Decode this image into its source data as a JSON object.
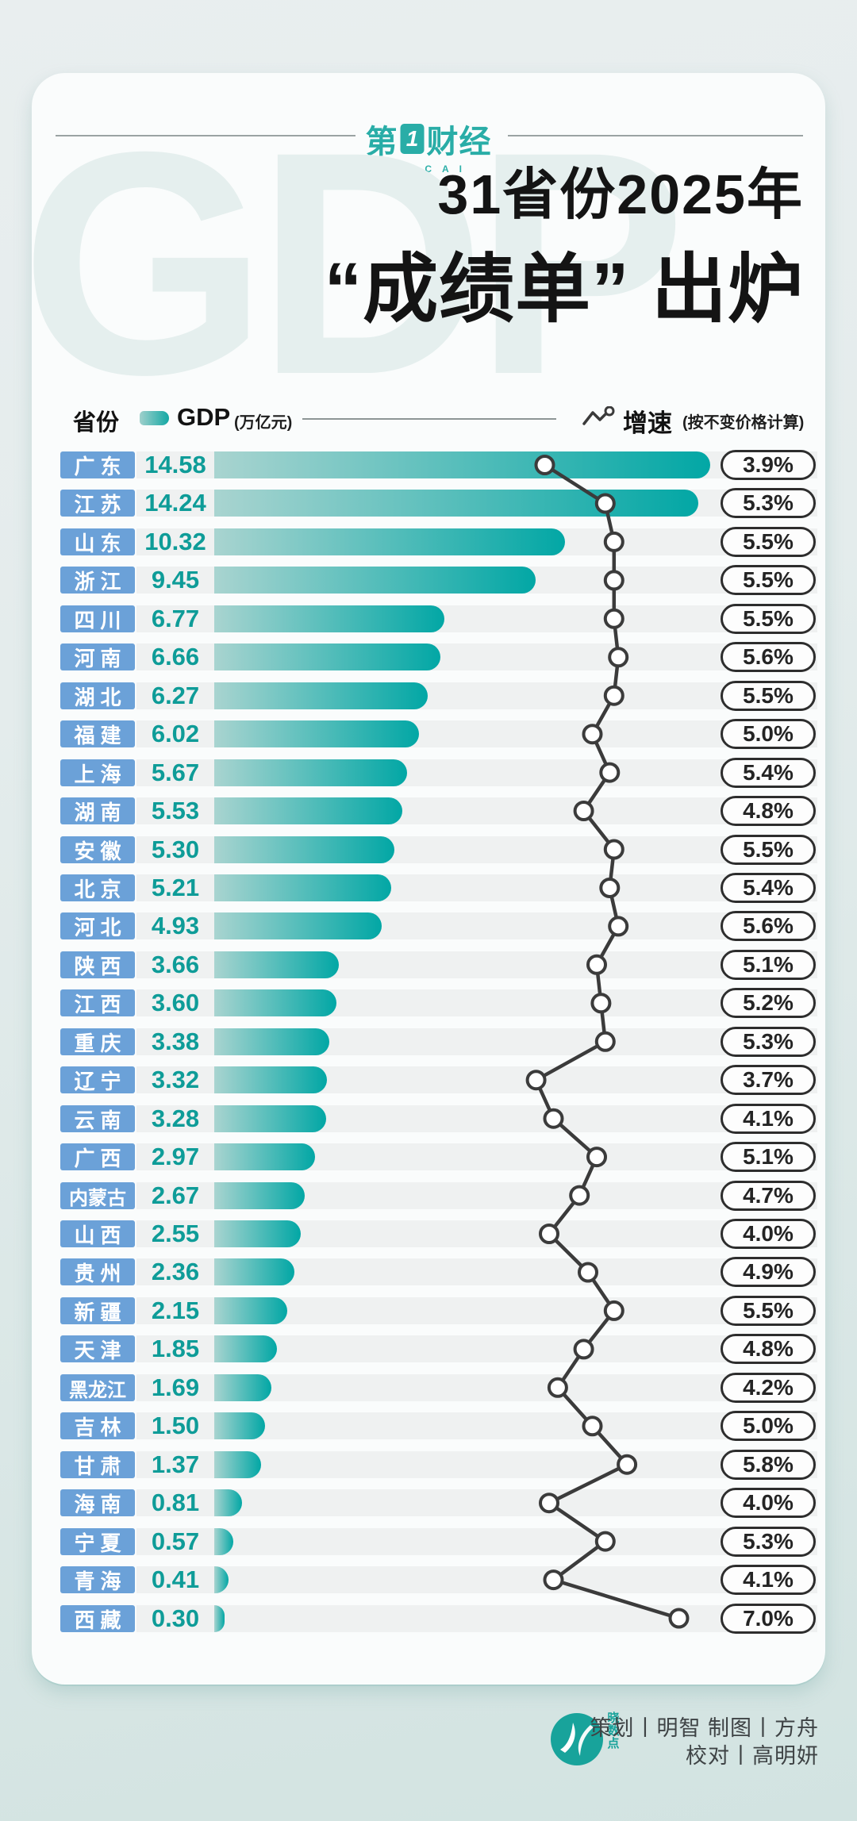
{
  "brand": {
    "part1": "第",
    "mark": "1",
    "part2": "财经",
    "sub": "YICAI"
  },
  "header": {
    "watermark": "GDP",
    "title_line1": "31省份2025年",
    "title_line2": "“成绩单” 出炉"
  },
  "legend": {
    "province": "省份",
    "gdp": "GDP",
    "gdp_unit": "(万亿元)",
    "growth": "增速",
    "growth_note": "(按不变价格计算)"
  },
  "chart_data": {
    "type": "bar",
    "title": "31省份2025年“成绩单”出炉",
    "categories": [
      "广东",
      "江苏",
      "山东",
      "浙江",
      "四川",
      "河南",
      "湖北",
      "福建",
      "上海",
      "湖南",
      "安徽",
      "北京",
      "河北",
      "陕西",
      "江西",
      "重庆",
      "辽宁",
      "云南",
      "广西",
      "内蒙古",
      "山西",
      "贵州",
      "新疆",
      "天津",
      "黑龙江",
      "吉林",
      "甘肃",
      "海南",
      "宁夏",
      "青海",
      "西藏"
    ],
    "series": [
      {
        "name": "GDP(万亿元)",
        "type": "bar",
        "values": [
          14.58,
          14.24,
          10.32,
          9.45,
          6.77,
          6.66,
          6.27,
          6.02,
          5.67,
          5.53,
          5.3,
          5.21,
          4.93,
          3.66,
          3.6,
          3.38,
          3.32,
          3.28,
          2.97,
          2.67,
          2.55,
          2.36,
          2.15,
          1.85,
          1.69,
          1.5,
          1.37,
          0.81,
          0.57,
          0.41,
          0.3
        ],
        "display": [
          "14.58",
          "14.24",
          "10.32",
          "9.45",
          "6.77",
          "6.66",
          "6.27",
          "6.02",
          "5.67",
          "5.53",
          "5.30",
          "5.21",
          "4.93",
          "3.66",
          "3.60",
          "3.38",
          "3.32",
          "3.28",
          "2.97",
          "2.67",
          "2.55",
          "2.36",
          "2.15",
          "1.85",
          "1.69",
          "1.50",
          "1.37",
          "0.81",
          "0.57",
          "0.41",
          "0.30"
        ]
      },
      {
        "name": "增速(按不变价格计算)",
        "type": "line",
        "values": [
          3.9,
          5.3,
          5.5,
          5.5,
          5.5,
          5.6,
          5.5,
          5.0,
          5.4,
          4.8,
          5.5,
          5.4,
          5.6,
          5.1,
          5.2,
          5.3,
          3.7,
          4.1,
          5.1,
          4.7,
          4.0,
          4.9,
          5.5,
          4.8,
          4.2,
          5.0,
          5.8,
          4.0,
          5.3,
          4.1,
          7.0
        ],
        "display": [
          "3.9%",
          "5.3%",
          "5.5%",
          "5.5%",
          "5.5%",
          "5.6%",
          "5.5%",
          "5.0%",
          "5.4%",
          "4.8%",
          "5.5%",
          "5.4%",
          "5.6%",
          "5.1%",
          "5.2%",
          "5.3%",
          "3.7%",
          "4.1%",
          "5.1%",
          "4.7%",
          "4.0%",
          "4.9%",
          "5.5%",
          "4.8%",
          "4.2%",
          "5.0%",
          "5.8%",
          "4.0%",
          "5.3%",
          "4.1%",
          "7.0%"
        ]
      }
    ],
    "gdp_axis_max": 14.58,
    "grid": false,
    "legend_position": "top"
  },
  "colors": {
    "accent_teal": "#02a7a5",
    "bar_gradient_start": "#a9d4d0",
    "badge_blue": "#6ba1d8",
    "gdp_number": "#0e9c98",
    "line_dark": "#3b3b3b",
    "brand_teal": "#29ada7"
  },
  "footer": {
    "logo_name": "晓数点",
    "credits_line1": "策划丨明智  制图丨方舟",
    "credits_line2": "校对丨高明妍"
  }
}
